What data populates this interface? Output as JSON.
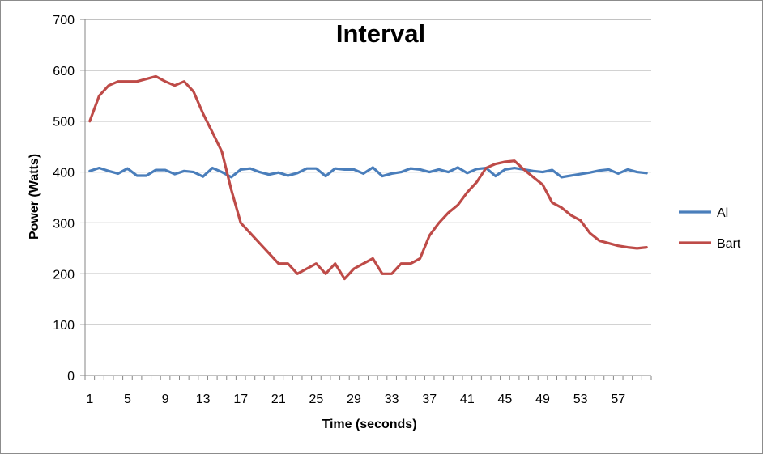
{
  "chart_data": {
    "type": "line",
    "title": "Interval",
    "xlabel": "Time (seconds)",
    "ylabel": "Power (Watts)",
    "ylim": [
      0,
      700
    ],
    "yticks": [
      0,
      100,
      200,
      300,
      400,
      500,
      600,
      700
    ],
    "x": [
      1,
      2,
      3,
      4,
      5,
      6,
      7,
      8,
      9,
      10,
      11,
      12,
      13,
      14,
      15,
      16,
      17,
      18,
      19,
      20,
      21,
      22,
      23,
      24,
      25,
      26,
      27,
      28,
      29,
      30,
      31,
      32,
      33,
      34,
      35,
      36,
      37,
      38,
      39,
      40,
      41,
      42,
      43,
      44,
      45,
      46,
      47,
      48,
      49,
      50,
      51,
      52,
      53,
      54,
      55,
      56,
      57,
      58,
      59,
      60
    ],
    "xtick_labels": [
      "1",
      "5",
      "9",
      "13",
      "17",
      "21",
      "25",
      "29",
      "33",
      "37",
      "41",
      "45",
      "49",
      "53",
      "57"
    ],
    "grid": "horizontal",
    "legend_position": "right",
    "series": [
      {
        "name": "Al",
        "color": "#4a7ebb",
        "values": [
          402,
          408,
          402,
          397,
          407,
          393,
          393,
          404,
          404,
          396,
          402,
          400,
          391,
          408,
          400,
          390,
          405,
          407,
          400,
          395,
          399,
          393,
          398,
          407,
          407,
          392,
          407,
          405,
          405,
          397,
          409,
          392,
          397,
          400,
          407,
          405,
          400,
          405,
          400,
          409,
          398,
          406,
          408,
          392,
          405,
          408,
          405,
          402,
          400,
          404,
          390,
          393,
          396,
          399,
          403,
          405,
          397,
          405,
          400,
          398
        ]
      },
      {
        "name": "Bart",
        "color": "#be4b48",
        "values": [
          500,
          550,
          570,
          578,
          578,
          578,
          583,
          588,
          578,
          570,
          578,
          558,
          515,
          478,
          440,
          365,
          300,
          280,
          260,
          240,
          220,
          220,
          200,
          210,
          220,
          200,
          220,
          190,
          210,
          220,
          230,
          200,
          200,
          220,
          220,
          230,
          275,
          300,
          320,
          335,
          360,
          380,
          408,
          416,
          420,
          422,
          405,
          390,
          375,
          340,
          330,
          315,
          305,
          280,
          265,
          260,
          255,
          252,
          250,
          252
        ]
      }
    ]
  }
}
